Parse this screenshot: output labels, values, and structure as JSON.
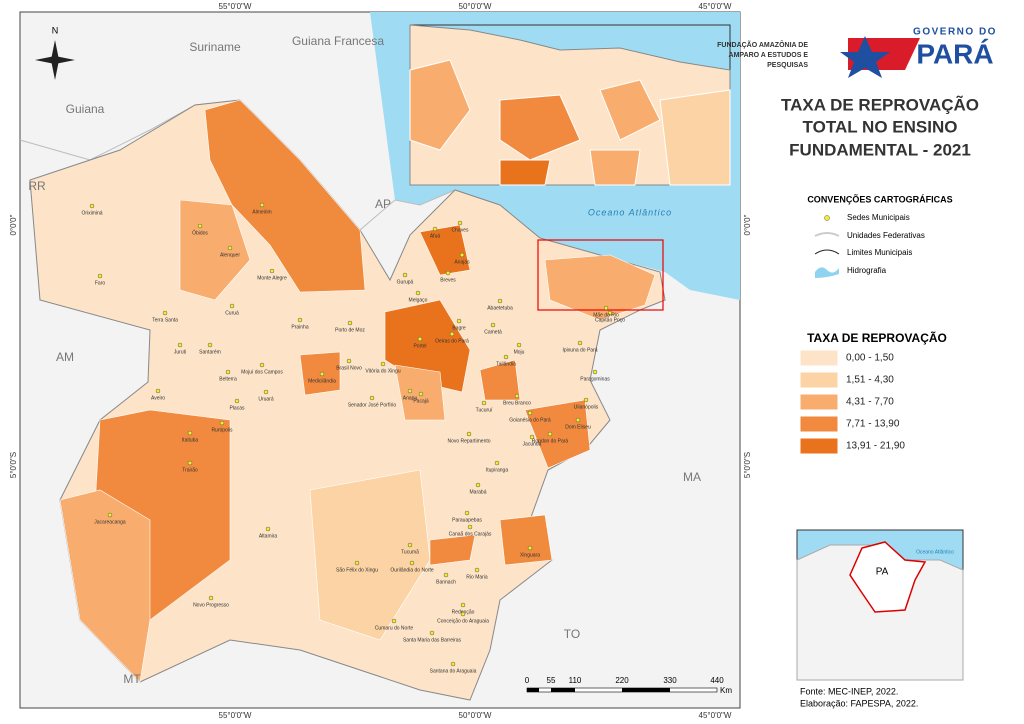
{
  "header": {
    "institute_line1": "FUNDAÇÃO AMAZÔNIA DE",
    "institute_line2": "AMPARO A ESTUDOS E",
    "institute_line3": "PESQUISAS",
    "gov_line1": "GOVERNO DO",
    "gov_line2": "PARÁ"
  },
  "title": {
    "line1": "TAXA DE REPROVAÇÃO",
    "line2": "TOTAL NO ENSINO",
    "line3": "FUNDAMENTAL - 2021"
  },
  "conventions": {
    "heading": "CONVENÇÕES CARTOGRÁFICAS",
    "items": [
      "Sedes Municipais",
      "Unidades Federativas",
      "Limites Municipais",
      "Hidrografia"
    ]
  },
  "legend": {
    "heading": "TAXA DE REPROVAÇÃO",
    "classes": [
      "0,00 - 1,50",
      "1,51 - 4,30",
      "4,31 - 7,70",
      "7,71 - 13,90",
      "13,91 - 21,90"
    ]
  },
  "graticule": {
    "top": [
      "55°0'0\"W",
      "50°0'0\"W",
      "45°0'0\"W"
    ],
    "left": [
      "0°0'0\"",
      "5°0'0\"S"
    ]
  },
  "neighbors": [
    "Suriname",
    "Guiana Francesa",
    "Guiana",
    "RR",
    "AP",
    "AM",
    "MA",
    "TO",
    "MT"
  ],
  "ocean": "Oceano Atlântico",
  "north": "N",
  "scale": {
    "labels": [
      "0",
      "55",
      "110",
      "220",
      "330",
      "440"
    ],
    "unit": "Km"
  },
  "locator": {
    "label": "PA",
    "ocean": "Oceano Atlântico"
  },
  "source": {
    "line1": "Fonte: MEC-INEP, 2022.",
    "line2": "Elaboração: FAPESPA, 2022."
  },
  "municipalities": [
    "Oriximiná",
    "Óbidos",
    "Alenquer",
    "Almeirim",
    "Monte Alegre",
    "Faro",
    "Terra Santa",
    "Curuá",
    "Prainha",
    "Porto de Moz",
    "Santarém",
    "Juruti",
    "Belterra",
    "Mojuí dos Campos",
    "Medicilândia",
    "Brasil Novo",
    "Uruará",
    "Placas",
    "Aveiro",
    "Rurópolis",
    "Itaituba",
    "Trairão",
    "Jacareacanga",
    "Novo Progresso",
    "Altamira",
    "São Félix do Xingu",
    "Portel",
    "Breves",
    "Melgaço",
    "Gurupá",
    "Afuá",
    "Chaves",
    "Anajás",
    "Bagre",
    "Oeiras do Pará",
    "Pacajá",
    "Anapu",
    "Tucuruí",
    "Novo Repartimento",
    "Marabá",
    "Parauapebas",
    "Canaã dos Carajás",
    "Tucumã",
    "Ourilândia do Norte",
    "Redenção",
    "Santana do Araguaia",
    "Conceição do Araguaia",
    "Paragominas",
    "Ulianópolis",
    "Dom Eliseu",
    "Rondon do Pará",
    "Tailândia",
    "Moju",
    "Cametá",
    "Abaetetuba",
    "Capitão Poço",
    "Breu Branco",
    "Jacundá",
    "Itupiranga",
    "Xinguara",
    "Rio Maria",
    "Bannach",
    "Cumaru do Norte",
    "Santa Maria das Barreiras",
    "Goianésia do Pará",
    "Senador José Porfírio",
    "Vitória do Xingu",
    "Mãe do Rio",
    "Ipixuna do Pará"
  ]
}
